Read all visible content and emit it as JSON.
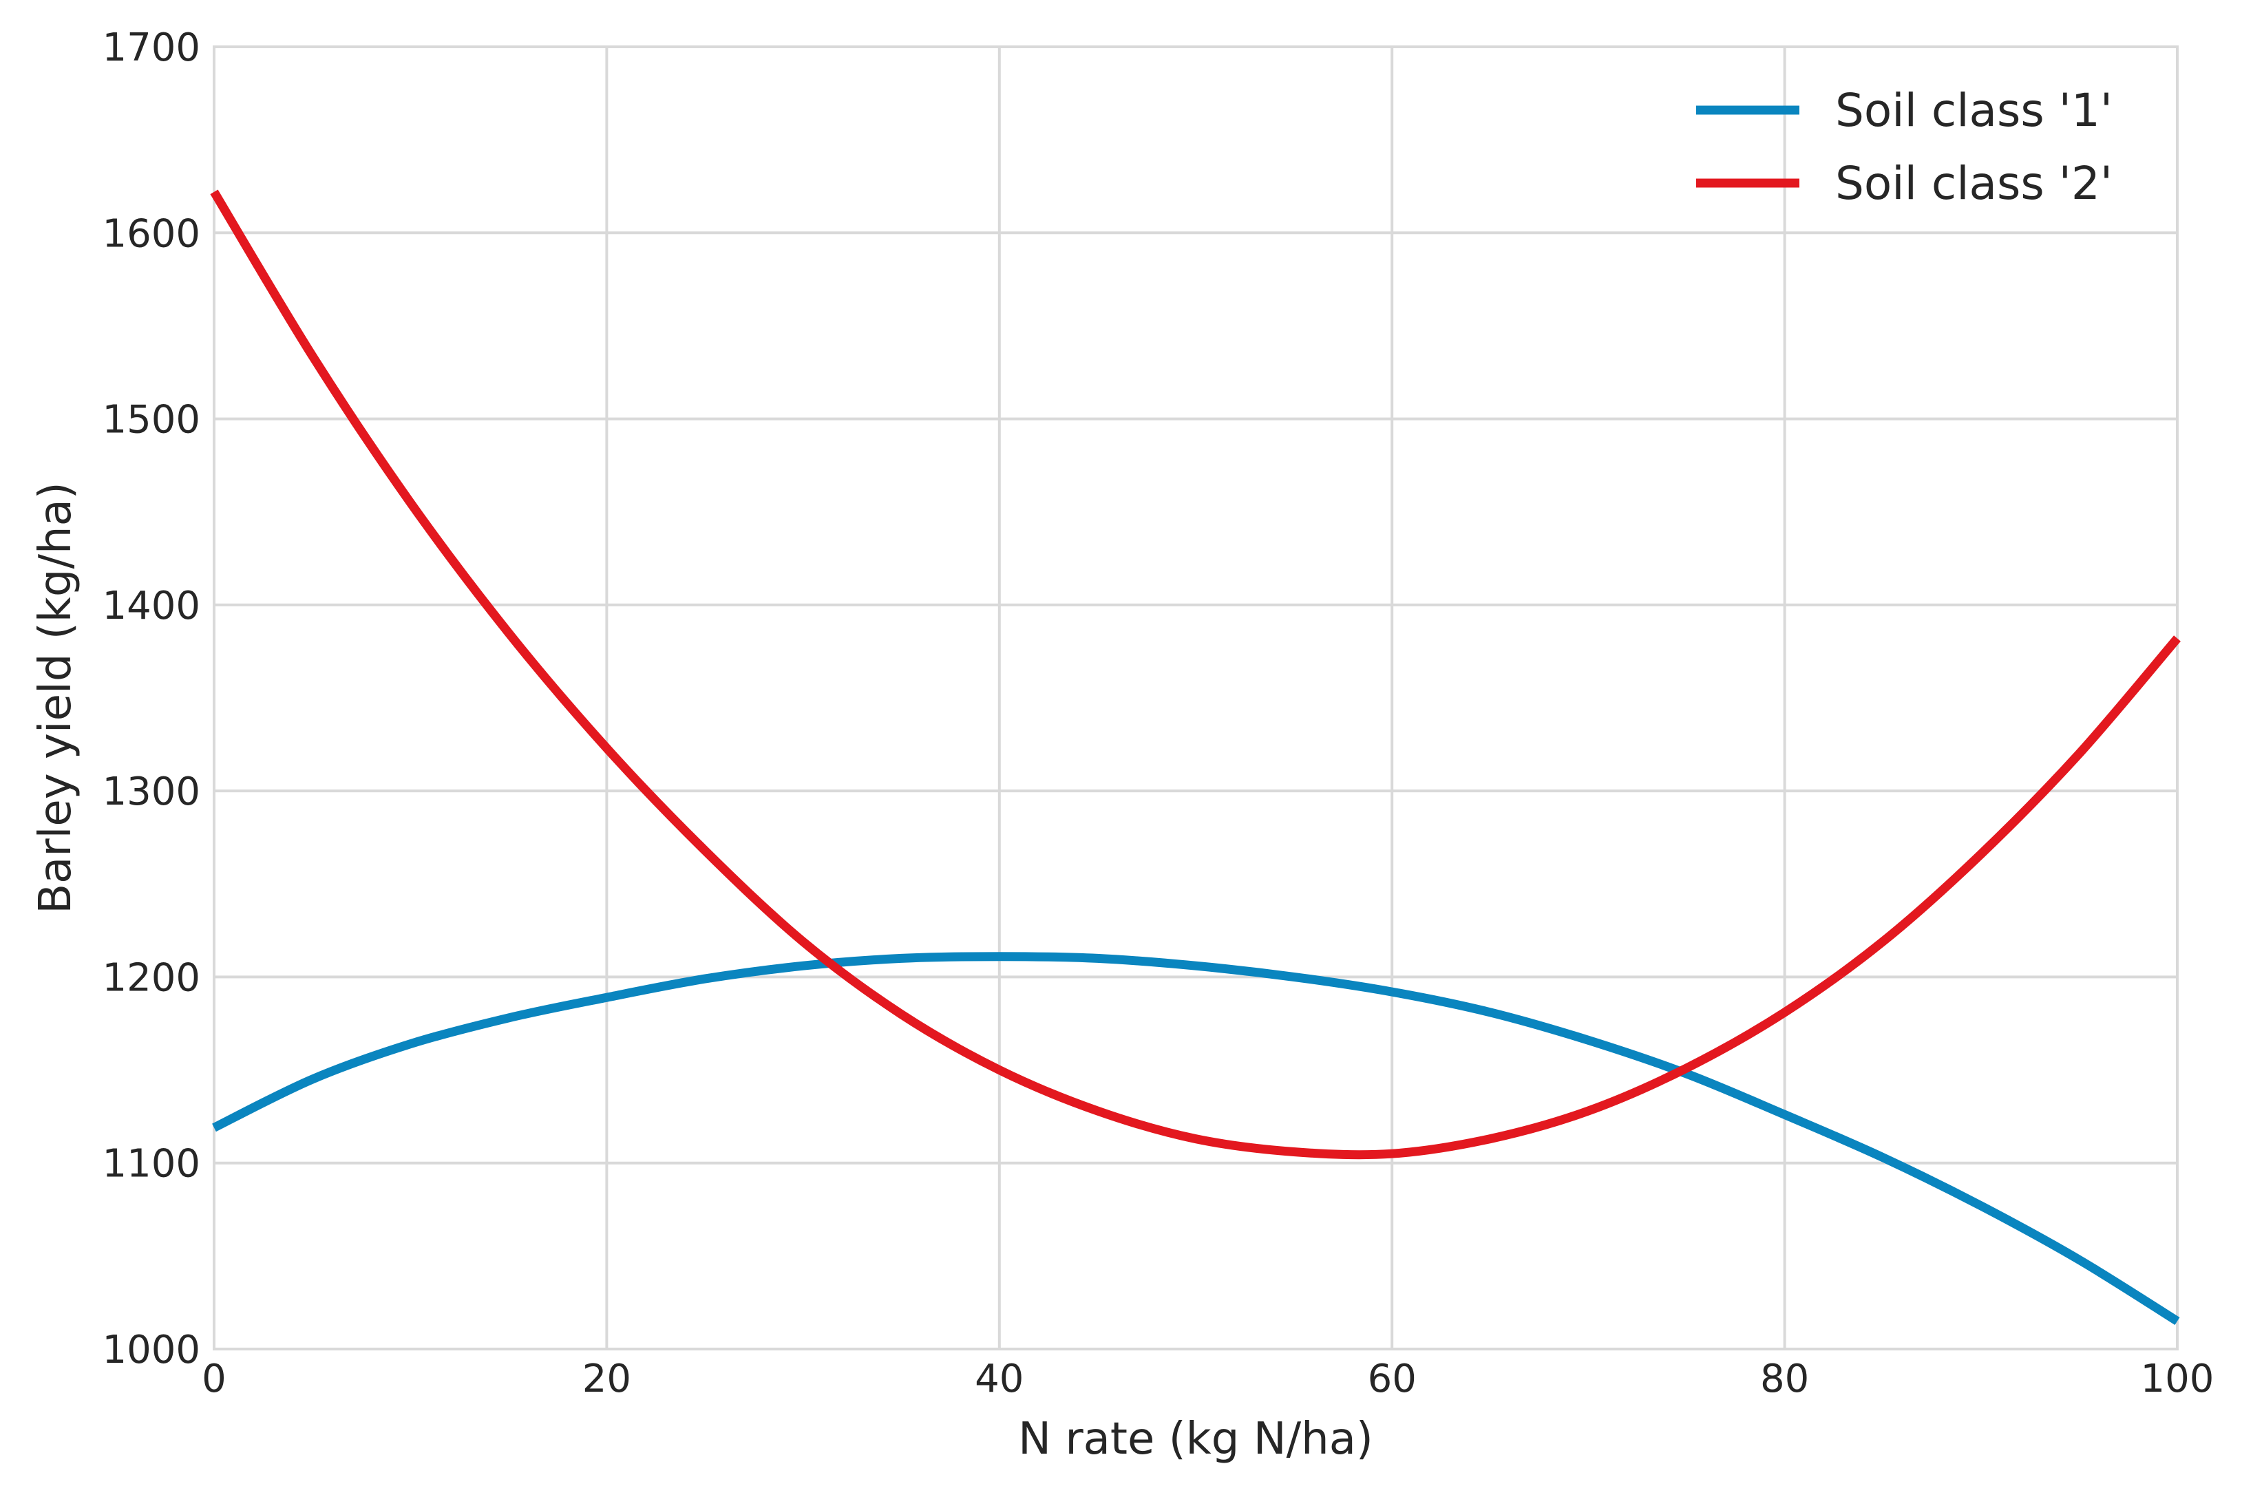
{
  "chart_data": {
    "type": "line",
    "title": "",
    "xlabel": "N rate (kg N/ha)",
    "ylabel": "Barley yield (kg/ha)",
    "xlim": [
      0,
      100
    ],
    "ylim": [
      1000,
      1700
    ],
    "x_ticks": [
      0,
      20,
      40,
      60,
      80,
      100
    ],
    "y_ticks": [
      1000,
      1100,
      1200,
      1300,
      1400,
      1500,
      1600,
      1700
    ],
    "grid": true,
    "legend_position": "top-right",
    "x": [
      0,
      5,
      10,
      15,
      20,
      25,
      30,
      35,
      40,
      45,
      50,
      55,
      60,
      65,
      70,
      75,
      80,
      85,
      90,
      95,
      100
    ],
    "series": [
      {
        "name": "Soil class '1'",
        "color": "#0a85bf",
        "values": [
          1119,
          1145,
          1164,
          1178,
          1189,
          1199,
          1206,
          1210,
          1211,
          1210,
          1206,
          1200,
          1192,
          1181,
          1166,
          1148,
          1126,
          1103,
          1077,
          1048,
          1015
        ]
      },
      {
        "name": "Soil class '2'",
        "color": "#e3181f",
        "values": [
          1622,
          1534,
          1455,
          1385,
          1323,
          1268,
          1219,
          1180,
          1150,
          1128,
          1113,
          1106,
          1105,
          1113,
          1128,
          1151,
          1181,
          1219,
          1266,
          1320,
          1382
        ]
      }
    ]
  }
}
